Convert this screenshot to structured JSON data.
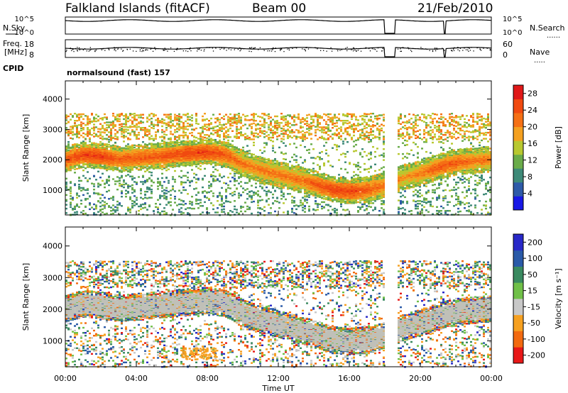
{
  "header": {
    "station": "Falkland Islands (fitACF)",
    "beam": "Beam 00",
    "date": "21/Feb/2010"
  },
  "strips": {
    "nsky_label": "N.Sky",
    "nsky_ticks": [
      "10^5",
      "10^0"
    ],
    "nsearch_label": "N.Search",
    "nsearch_ticks": [
      "10^5",
      "10^0"
    ],
    "freq_label": "Freq.",
    "freq_unit": "[MHz]",
    "freq_ticks": [
      "18",
      "8"
    ],
    "nave_label": "Nave",
    "nave_ticks": [
      "60",
      "0"
    ],
    "cpid_label": "CPID",
    "cpid_text": "normalsound (fast) 157"
  },
  "colors": {
    "power_scale": [
      "#1818e6",
      "#2e5aa8",
      "#3e8a78",
      "#6aac4a",
      "#b8c830",
      "#f4a020",
      "#f57015",
      "#f04a10",
      "#e01818"
    ],
    "velocity_scale": [
      "#e81818",
      "#f26a10",
      "#f6a020",
      "#c8c8c8",
      "#70c048",
      "#3a8a60",
      "#2a5aa8",
      "#2828c8"
    ],
    "ground_scatter": "#c0c0b8"
  },
  "chart_data": [
    {
      "type": "heatmap",
      "quantity": "Power",
      "ylabel": "Slant Range [km]",
      "ylim": [
        180,
        4600
      ],
      "yticks": [
        "1000",
        "2000",
        "3000",
        "4000"
      ],
      "xlim_hours": [
        0,
        24
      ],
      "colorbar_label": "Power [dB]",
      "colorbar_ticks": [
        "4",
        "8",
        "12",
        "16",
        "20",
        "24",
        "28"
      ],
      "colorbar_range": [
        0,
        30
      ],
      "data_gaps_hours": [
        [
          18.0,
          18.6
        ]
      ],
      "main_echo_band": {
        "times_hours": [
          0,
          1,
          2,
          3,
          4,
          5,
          6,
          7,
          8,
          9,
          10,
          11,
          12,
          13,
          14,
          15,
          16,
          17,
          18,
          19,
          20,
          21,
          22,
          23,
          24
        ],
        "center_range_km": [
          2050,
          2200,
          2150,
          2050,
          2100,
          2150,
          2200,
          2250,
          2300,
          2200,
          1900,
          1700,
          1550,
          1400,
          1250,
          1050,
          1000,
          1050,
          1200,
          1450,
          1600,
          1800,
          1950,
          2000,
          2050
        ],
        "peak_power_db": [
          24,
          26,
          26,
          24,
          24,
          24,
          25,
          26,
          26,
          24,
          22,
          22,
          22,
          22,
          24,
          26,
          26,
          24,
          22,
          20,
          22,
          24,
          24,
          22,
          22
        ]
      }
    },
    {
      "type": "heatmap",
      "quantity": "Velocity",
      "ylabel": "Slant Range [km]",
      "ylim": [
        180,
        4600
      ],
      "yticks": [
        "1000",
        "2000",
        "3000",
        "4000"
      ],
      "xlabel": "Time UT",
      "xticks": [
        "00:00",
        "04:00",
        "08:00",
        "12:00",
        "16:00",
        "20:00",
        "00:00"
      ],
      "xlim_hours": [
        0,
        24
      ],
      "colorbar_label": "Velocity [m s⁻¹]",
      "colorbar_ticks": [
        "200",
        "100",
        "50",
        "15",
        "-15",
        "-50",
        "-100",
        "-200"
      ],
      "colorbar_range": [
        -250,
        250
      ],
      "data_gaps_hours": [
        [
          18.0,
          18.6
        ]
      ],
      "ground_scatter_dominant": true,
      "notable_feature": {
        "time_hours": [
          6.5,
          8.5
        ],
        "range_km": [
          400,
          800
        ],
        "velocity": "-50"
      }
    }
  ]
}
